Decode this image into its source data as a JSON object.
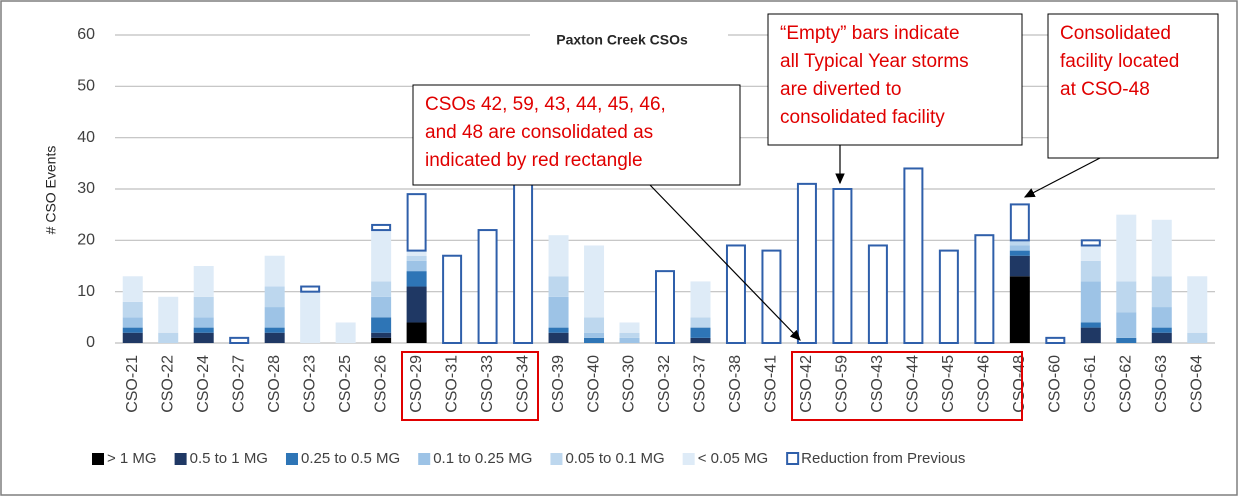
{
  "chart_data": {
    "type": "bar",
    "stacked": true,
    "title": "Paxton Creek CSOs",
    "y_label": "# CSO Events",
    "categories": [
      "CSO-21",
      "CSO-22",
      "CSO-24",
      "CSO-27",
      "CSO-28",
      "CSO-23",
      "CSO-25",
      "CSO-26",
      "CSO-29",
      "CSO-31",
      "CSO-33",
      "CSO-34",
      "CSO-39",
      "CSO-40",
      "CSO-30",
      "CSO-32",
      "CSO-37",
      "CSO-38",
      "CSO-41",
      "CSO-42",
      "CSO-59",
      "CSO-43",
      "CSO-44",
      "CSO-45",
      "CSO-46",
      "CSO-48",
      "CSO-60",
      "CSO-61",
      "CSO-62",
      "CSO-63",
      "CSO-64"
    ],
    "series": [
      {
        "name": "> 1 MG",
        "color": "#000000",
        "values": [
          0,
          0,
          0,
          0,
          0,
          0,
          0,
          1,
          4,
          0,
          0,
          0,
          0,
          0,
          0,
          0,
          0,
          0,
          0,
          0,
          0,
          0,
          0,
          0,
          0,
          13,
          0,
          0,
          0,
          0,
          0
        ]
      },
      {
        "name": "0.5 to 1 MG",
        "color": "#1f3864",
        "values": [
          2,
          0,
          2,
          0,
          2,
          0,
          0,
          1,
          7,
          0,
          0,
          0,
          2,
          0,
          0,
          0,
          1,
          0,
          0,
          0,
          0,
          0,
          0,
          0,
          0,
          4,
          0,
          3,
          0,
          2,
          0
        ]
      },
      {
        "name": "0.25 to 0.5 MG",
        "color": "#2e75b6",
        "values": [
          1,
          0,
          1,
          0,
          1,
          0,
          0,
          3,
          3,
          0,
          0,
          0,
          1,
          1,
          0,
          0,
          2,
          0,
          0,
          0,
          0,
          0,
          0,
          0,
          0,
          1,
          0,
          1,
          1,
          1,
          0
        ]
      },
      {
        "name": "0.1 to 0.25 MG",
        "color": "#9dc3e6",
        "values": [
          2,
          0,
          2,
          0,
          4,
          0,
          0,
          4,
          2,
          0,
          0,
          0,
          6,
          1,
          1,
          0,
          0,
          0,
          0,
          0,
          0,
          0,
          0,
          0,
          0,
          1,
          0,
          8,
          5,
          4,
          0
        ]
      },
      {
        "name": "0.05 to 0.1 MG",
        "color": "#bdd7ee",
        "values": [
          3,
          2,
          4,
          0,
          4,
          0,
          0,
          3,
          1,
          0,
          0,
          0,
          4,
          3,
          1,
          0,
          2,
          0,
          0,
          0,
          0,
          0,
          0,
          0,
          0,
          1,
          0,
          4,
          6,
          6,
          2
        ]
      },
      {
        "name": "< 0.05 MG",
        "color": "#deebf7",
        "values": [
          5,
          7,
          6,
          0,
          6,
          10,
          4,
          10,
          1,
          0,
          0,
          0,
          8,
          14,
          2,
          0,
          7,
          0,
          0,
          0,
          0,
          0,
          0,
          0,
          0,
          0,
          0,
          3,
          13,
          11,
          11
        ]
      },
      {
        "name": "Reduction from Previous",
        "color": "#2f5faa",
        "outline": true,
        "values": [
          0,
          0,
          0,
          1,
          0,
          1,
          0,
          1,
          11,
          17,
          22,
          31,
          0,
          0,
          0,
          14,
          0,
          19,
          18,
          31,
          30,
          19,
          34,
          18,
          21,
          7,
          1,
          1,
          0,
          0,
          0
        ]
      }
    ],
    "ylim": [
      0,
      60
    ],
    "yticks": [
      0,
      10,
      20,
      30,
      40,
      50,
      60
    ],
    "grid": true,
    "legend": "bottom",
    "annotations": [
      {
        "lines": [
          "CSOs 42, 59, 43, 44, 45, 46,",
          "and 48 are consolidated as",
          "indicated by red rectangle"
        ],
        "color": "#e00000"
      },
      {
        "lines": [
          "“Empty” bars indicate",
          "all Typical Year storms",
          "are diverted to",
          "consolidated facility"
        ],
        "color": "#e00000"
      },
      {
        "lines": [
          "Consolidated",
          "facility located",
          "at CSO-48"
        ],
        "color": "#e00000"
      }
    ]
  }
}
